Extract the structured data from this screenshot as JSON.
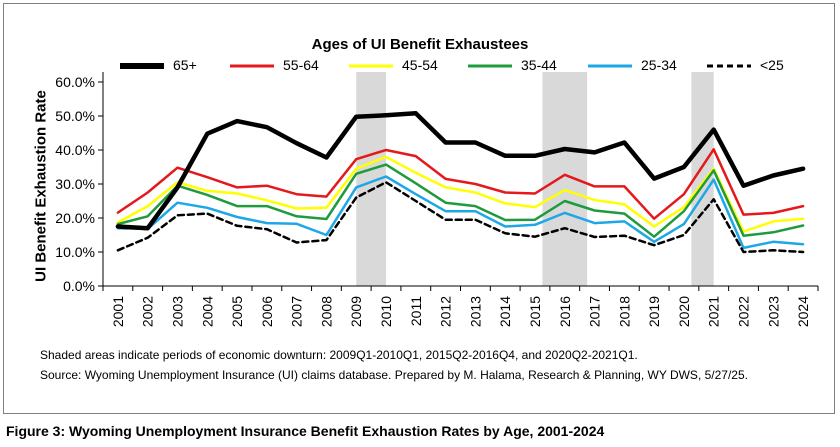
{
  "figure_caption": "Figure 3: Wyoming Unemployment Insurance Benefit Exhaustion Rates by Age, 2001-2024",
  "notes": {
    "shading": "Shaded areas indicate periods of economic downturn: 2009Q1-2010Q1, 2015Q2-2016Q4, and 2020Q2-2021Q1.",
    "source": "Source: Wyoming Unemployment Insurance (UI) claims database. Prepared by M. Halama, Research & Planning, WY DWS, 5/27/25."
  },
  "chart_data": {
    "type": "line",
    "title": "",
    "legend_title": "Ages of UI Benefit Exhaustees",
    "legend_placement": "top",
    "xlabel": "",
    "ylabel": "UI Benefit Exhaustion Rate",
    "ylim": [
      0,
      0.6
    ],
    "yticks": [
      0,
      0.1,
      0.2,
      0.3,
      0.4,
      0.5,
      0.6
    ],
    "ytick_labels": [
      "0.0%",
      "10.0%",
      "20.0%",
      "30.0%",
      "40.0%",
      "50.0%",
      "60.0%"
    ],
    "grid": false,
    "categories": [
      "2001",
      "2002",
      "2003",
      "2004",
      "2005",
      "2006",
      "2007",
      "2008",
      "2009",
      "2010",
      "2011",
      "2012",
      "2013",
      "2014",
      "2015",
      "2016",
      "2017",
      "2018",
      "2019",
      "2020",
      "2021",
      "2022",
      "2023",
      "2024"
    ],
    "shaded_periods": [
      {
        "label": "2009Q1-2010Q1",
        "start": 2009.0,
        "end": 2010.0
      },
      {
        "label": "2015Q2-2016Q4",
        "start": 2015.25,
        "end": 2016.75
      },
      {
        "label": "2020Q2-2021Q1",
        "start": 2020.25,
        "end": 2021.0
      }
    ],
    "series": [
      {
        "name": "65+",
        "color": "#000000",
        "style": "solid-thick",
        "values": [
          0.175,
          0.17,
          0.29,
          0.448,
          0.485,
          0.467,
          0.42,
          0.378,
          0.498,
          0.502,
          0.508,
          0.422,
          0.422,
          0.383,
          0.383,
          0.403,
          0.393,
          0.422,
          0.316,
          0.35,
          0.46,
          0.295,
          0.325,
          0.345
        ]
      },
      {
        "name": "55-64",
        "color": "#e3191c",
        "style": "solid",
        "values": [
          0.216,
          0.275,
          0.348,
          0.32,
          0.29,
          0.295,
          0.27,
          0.263,
          0.373,
          0.4,
          0.382,
          0.315,
          0.3,
          0.275,
          0.272,
          0.327,
          0.293,
          0.293,
          0.198,
          0.27,
          0.402,
          0.21,
          0.215,
          0.235
        ]
      },
      {
        "name": "45-54",
        "color": "#ffff00",
        "style": "solid",
        "values": [
          0.187,
          0.235,
          0.305,
          0.28,
          0.272,
          0.252,
          0.228,
          0.23,
          0.345,
          0.38,
          0.333,
          0.29,
          0.275,
          0.243,
          0.232,
          0.282,
          0.253,
          0.24,
          0.175,
          0.232,
          0.345,
          0.16,
          0.19,
          0.198
        ]
      },
      {
        "name": "35-44",
        "color": "#1f9a3c",
        "style": "solid",
        "values": [
          0.182,
          0.205,
          0.295,
          0.268,
          0.235,
          0.235,
          0.205,
          0.197,
          0.33,
          0.357,
          0.302,
          0.245,
          0.235,
          0.194,
          0.195,
          0.25,
          0.222,
          0.213,
          0.145,
          0.22,
          0.34,
          0.148,
          0.158,
          0.178
        ]
      },
      {
        "name": "25-34",
        "color": "#1ea7e6",
        "style": "solid",
        "values": [
          0.17,
          0.168,
          0.245,
          0.23,
          0.203,
          0.185,
          0.183,
          0.15,
          0.29,
          0.322,
          0.27,
          0.22,
          0.22,
          0.175,
          0.18,
          0.215,
          0.185,
          0.19,
          0.13,
          0.182,
          0.313,
          0.112,
          0.13,
          0.123
        ]
      },
      {
        "name": "<25",
        "color": "#000000",
        "style": "dashed",
        "values": [
          0.105,
          0.142,
          0.208,
          0.213,
          0.177,
          0.167,
          0.128,
          0.135,
          0.26,
          0.305,
          0.25,
          0.195,
          0.195,
          0.155,
          0.145,
          0.17,
          0.144,
          0.148,
          0.12,
          0.15,
          0.255,
          0.1,
          0.105,
          0.1
        ]
      }
    ]
  }
}
